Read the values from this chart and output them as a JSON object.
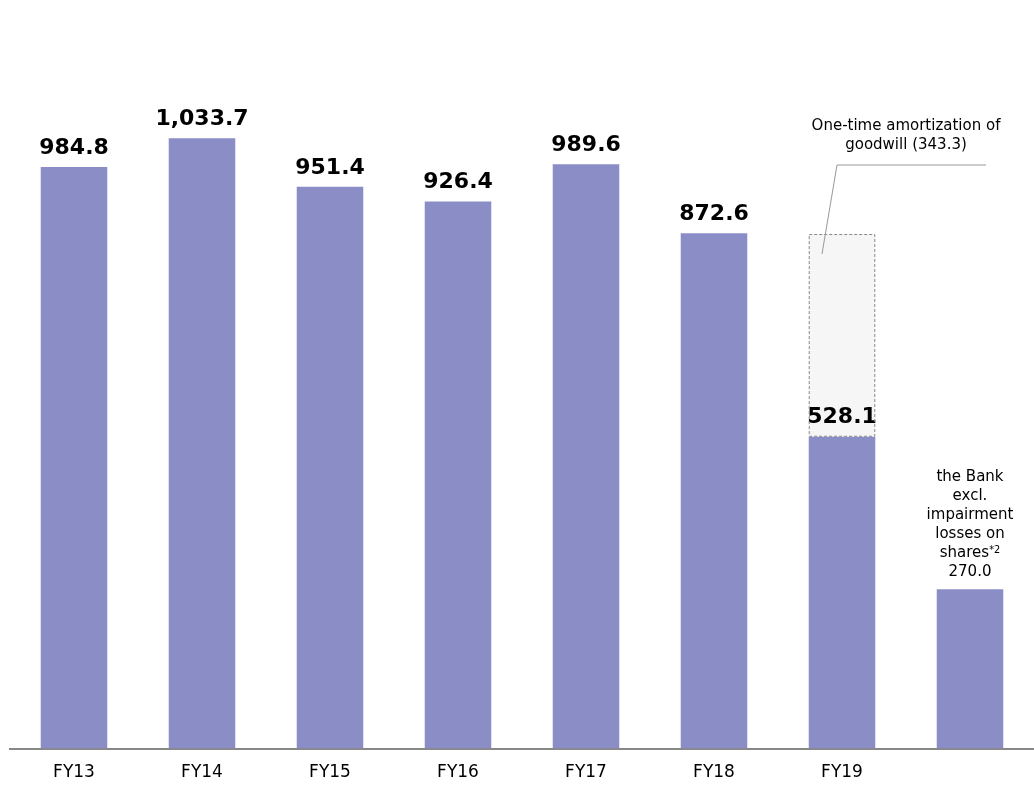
{
  "chart_data": {
    "type": "bar",
    "stacked": true,
    "legend": false,
    "tick_labels": "x",
    "grid": false,
    "categories": [
      "FY13",
      "FY14",
      "FY15",
      "FY16",
      "FY17",
      "FY18",
      "FY19",
      null
    ],
    "series": [
      {
        "color": "#8b8dc7",
        "values": [
          984.8,
          1033.7,
          951.4,
          926.4,
          989.6,
          872.6,
          528.1,
          270.0
        ],
        "value_labels": [
          "984.8",
          "1,033.7",
          "951.4",
          "926.4",
          "989.6",
          "872.6",
          "528.1",
          "270.0"
        ]
      },
      {
        "color": "#f6f6f6",
        "line_style": "dashed",
        "values": [
          null,
          null,
          null,
          null,
          null,
          null,
          343.3,
          null
        ]
      }
    ],
    "annotations": [
      "One-time amortization of goodwill (343.3)",
      "the Bank",
      "excl. impairment losses on shares$^{*2}$"
    ]
  }
}
